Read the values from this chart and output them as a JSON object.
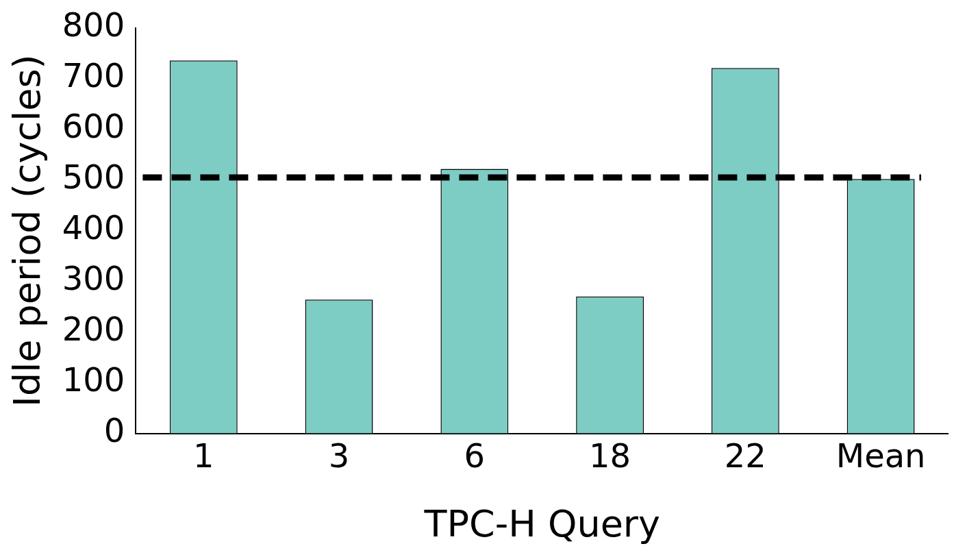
{
  "chart_data": {
    "type": "bar",
    "xlabel": "TPC-H Query",
    "ylabel": "Idle period (cycles)",
    "categories": [
      "1",
      "3",
      "6",
      "18",
      "22",
      "Mean"
    ],
    "values": [
      736,
      264,
      522,
      270,
      721,
      502
    ],
    "color": "#7ecdc4",
    "ylim": [
      0,
      800
    ],
    "yticks": [
      0,
      100,
      200,
      300,
      400,
      500,
      600,
      700,
      800
    ],
    "grid": false,
    "legend": false,
    "ref_lines": [
      {
        "axis": "y",
        "value": 505,
        "color": "#000000",
        "line_style": "dashed"
      }
    ]
  }
}
